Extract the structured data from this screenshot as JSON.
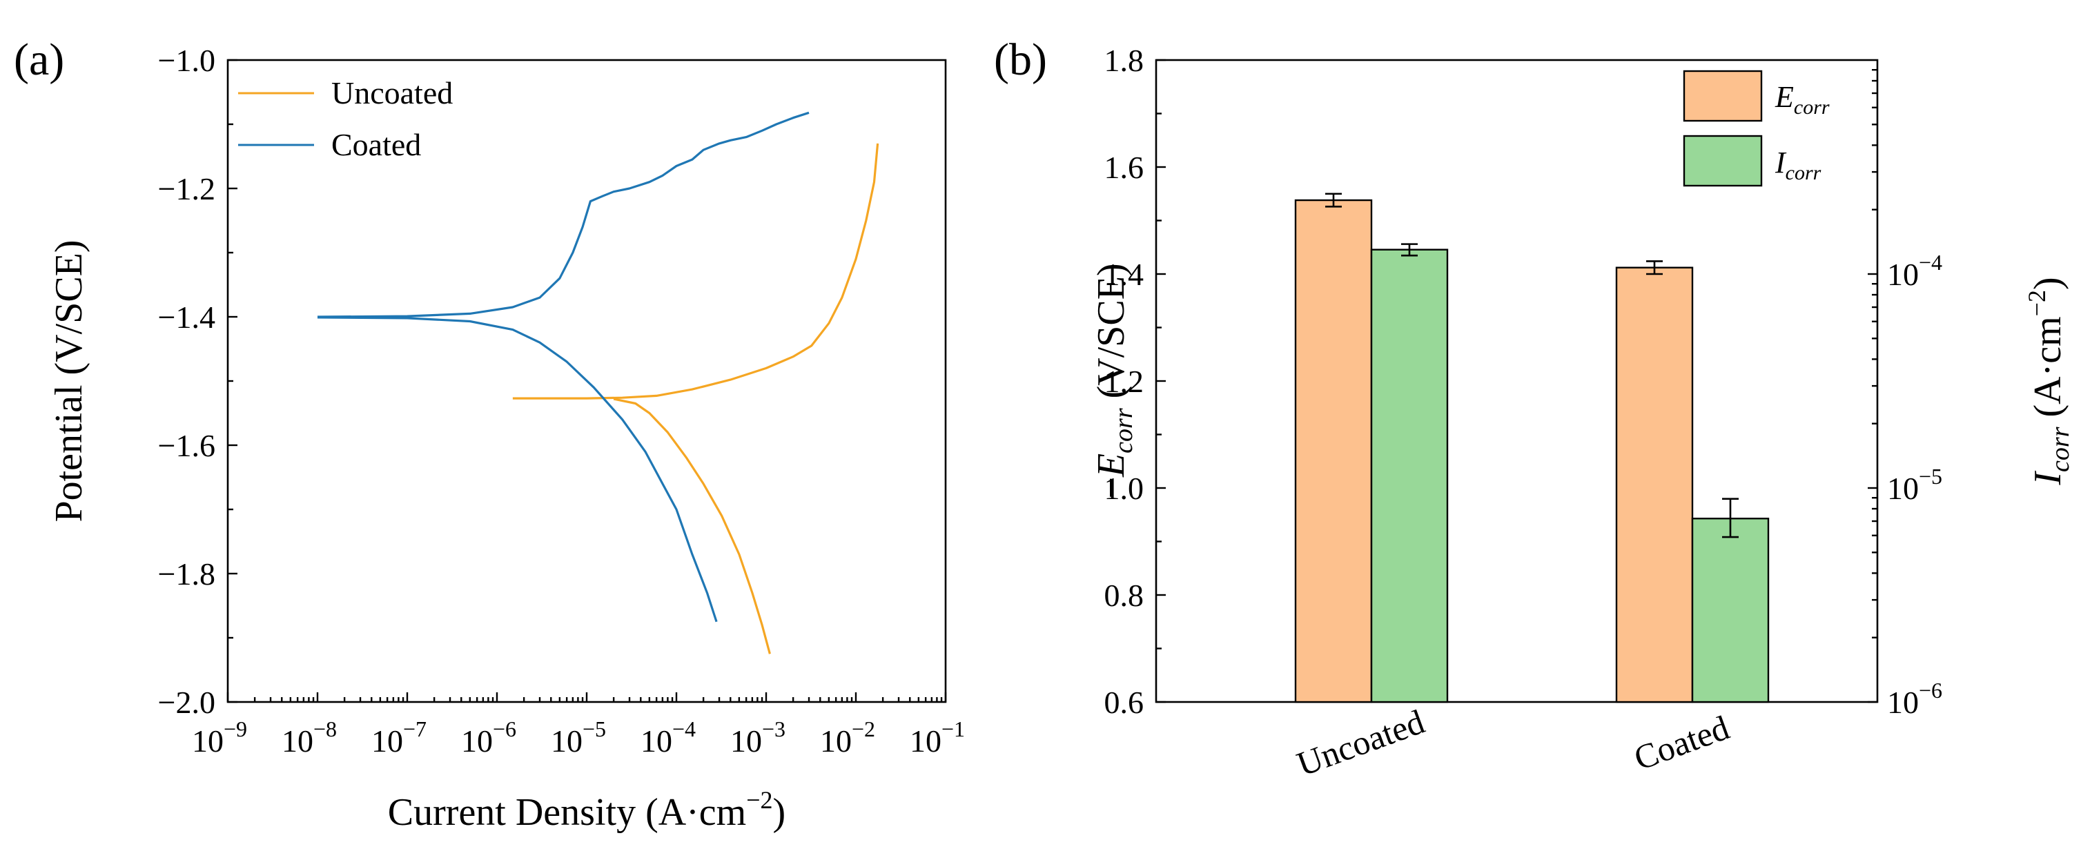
{
  "chart_data": [
    {
      "panel_label": "(a)",
      "type": "line",
      "xscale": "log",
      "xlim": [
        1e-09,
        0.1
      ],
      "ylim": [
        -2.0,
        -1.0
      ],
      "xlabel": "Current Density (A·cm",
      "xlabel_exponent": "−2",
      "xlabel_suffix": ")",
      "ylabel": "Potential (V/SCE)",
      "x_ticks": [
        {
          "base": "10",
          "exp": "−9",
          "value": 1e-09
        },
        {
          "base": "10",
          "exp": "−8",
          "value": 1e-08
        },
        {
          "base": "10",
          "exp": "−7",
          "value": 1e-07
        },
        {
          "base": "10",
          "exp": "−6",
          "value": 1e-06
        },
        {
          "base": "10",
          "exp": "−5",
          "value": 1e-05
        },
        {
          "base": "10",
          "exp": "−4",
          "value": 0.0001
        },
        {
          "base": "10",
          "exp": "−3",
          "value": 0.001
        },
        {
          "base": "10",
          "exp": "−2",
          "value": 0.01
        },
        {
          "base": "10",
          "exp": "−1",
          "value": 0.1
        }
      ],
      "y_ticks": [
        {
          "label": "−1.0",
          "value": -1.0
        },
        {
          "label": "−1.2",
          "value": -1.2
        },
        {
          "label": "−1.4",
          "value": -1.4
        },
        {
          "label": "−1.6",
          "value": -1.6
        },
        {
          "label": "−1.8",
          "value": -1.8
        },
        {
          "label": "−2.0",
          "value": -2.0
        }
      ],
      "legend_position": "top-left",
      "series": [
        {
          "name": "Uncoated",
          "color": "#F5A623",
          "anodic": [
            [
              1.5e-06,
              -1.527
            ],
            [
              1e-05,
              -1.527
            ],
            [
              2.5e-05,
              -1.526
            ],
            [
              6e-05,
              -1.523
            ],
            [
              0.00015,
              -1.513
            ],
            [
              0.0004,
              -1.498
            ],
            [
              0.001,
              -1.48
            ],
            [
              0.002,
              -1.462
            ],
            [
              0.0032,
              -1.445
            ],
            [
              0.005,
              -1.41
            ],
            [
              0.007,
              -1.37
            ],
            [
              0.01,
              -1.31
            ],
            [
              0.013,
              -1.25
            ],
            [
              0.016,
              -1.19
            ],
            [
              0.0175,
              -1.13
            ]
          ],
          "cathodic": [
            [
              2e-05,
              -1.528
            ],
            [
              3.5e-05,
              -1.535
            ],
            [
              5e-05,
              -1.55
            ],
            [
              8e-05,
              -1.58
            ],
            [
              0.00013,
              -1.62
            ],
            [
              0.0002,
              -1.66
            ],
            [
              0.00032,
              -1.71
            ],
            [
              0.0005,
              -1.77
            ],
            [
              0.0007,
              -1.83
            ],
            [
              0.0009,
              -1.88
            ],
            [
              0.0011,
              -1.925
            ]
          ]
        },
        {
          "name": "Coated",
          "color": "#1F77B4",
          "anodic": [
            [
              1e-08,
              -1.4
            ],
            [
              1e-07,
              -1.399
            ],
            [
              5e-07,
              -1.395
            ],
            [
              1.5e-06,
              -1.385
            ],
            [
              3e-06,
              -1.37
            ],
            [
              5e-06,
              -1.34
            ],
            [
              7e-06,
              -1.3
            ],
            [
              9e-06,
              -1.26
            ],
            [
              1.1e-05,
              -1.22
            ],
            [
              1.5e-05,
              -1.212
            ],
            [
              2e-05,
              -1.205
            ],
            [
              3e-05,
              -1.2
            ],
            [
              5e-05,
              -1.19
            ],
            [
              7e-05,
              -1.18
            ],
            [
              0.0001,
              -1.165
            ],
            [
              0.00015,
              -1.155
            ],
            [
              0.0002,
              -1.14
            ],
            [
              0.0003,
              -1.13
            ],
            [
              0.0004,
              -1.125
            ],
            [
              0.0006,
              -1.12
            ],
            [
              0.0009,
              -1.11
            ],
            [
              0.0013,
              -1.1
            ],
            [
              0.002,
              -1.09
            ],
            [
              0.003,
              -1.082
            ]
          ],
          "cathodic": [
            [
              1e-08,
              -1.401
            ],
            [
              1e-07,
              -1.402
            ],
            [
              5e-07,
              -1.407
            ],
            [
              1.5e-06,
              -1.42
            ],
            [
              3e-06,
              -1.44
            ],
            [
              6e-06,
              -1.47
            ],
            [
              1.2e-05,
              -1.51
            ],
            [
              2.5e-05,
              -1.56
            ],
            [
              4.5e-05,
              -1.61
            ],
            [
              7e-05,
              -1.66
            ],
            [
              0.0001,
              -1.7
            ],
            [
              0.00015,
              -1.77
            ],
            [
              0.00022,
              -1.83
            ],
            [
              0.00028,
              -1.875
            ]
          ]
        }
      ]
    },
    {
      "panel_label": "(b)",
      "type": "bar",
      "categories": [
        "Uncoated",
        "Coated"
      ],
      "ylabel_left_prefix": "−",
      "ylabel_left_var": "E",
      "ylabel_left_sub": "corr",
      "ylabel_left_suffix": " (V/SCE)",
      "ylim_left": [
        0.6,
        1.8
      ],
      "y_ticks_left": [
        "0.6",
        "0.8",
        "1.0",
        "1.2",
        "1.4",
        "1.6",
        "1.8"
      ],
      "ylabel_right_var": "I",
      "ylabel_right_sub": "corr",
      "ylabel_right_unit": " (A·cm",
      "ylabel_right_exp": "−2",
      "ylabel_right_close": ")",
      "ylim_right_log": [
        1e-06,
        0.001
      ],
      "y_ticks_right": [
        {
          "base": "10",
          "exp": "−6",
          "value": 1e-06
        },
        {
          "base": "10",
          "exp": "−5",
          "value": 1e-05
        },
        {
          "base": "10",
          "exp": "−4",
          "value": 0.0001
        }
      ],
      "legend_position": "top-right",
      "series": [
        {
          "name_var": "E",
          "name_sub": "corr",
          "axis": "left",
          "color": "#FDC18E",
          "values": [
            1.538,
            1.412
          ],
          "errors": [
            0.012,
            0.012
          ]
        },
        {
          "name_var": "I",
          "name_sub": "corr",
          "axis": "right",
          "color": "#98D898",
          "values": [
            0.00013,
            7.2e-06
          ],
          "errors_log": [
            [
              0.000122,
              0.000138
            ],
            [
              5.9e-06,
              8.9e-06
            ]
          ]
        }
      ]
    }
  ]
}
